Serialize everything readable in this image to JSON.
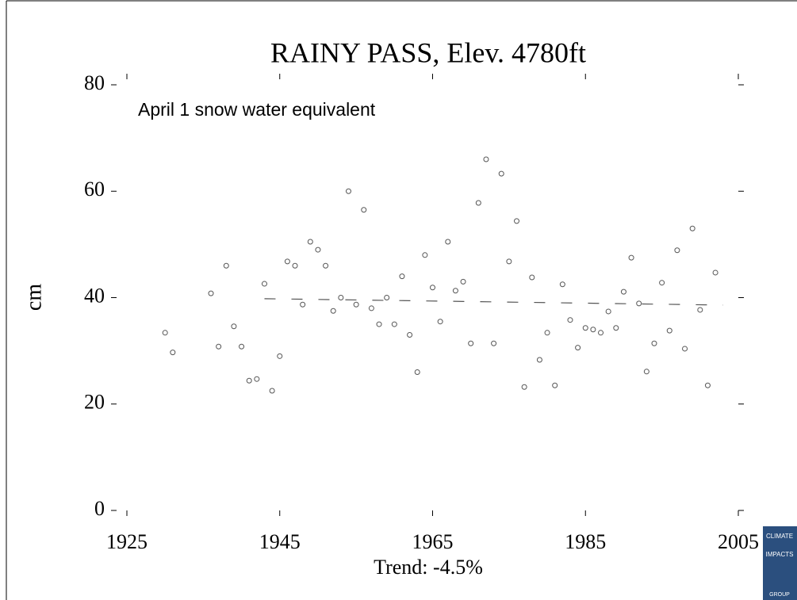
{
  "chart_data": {
    "type": "scatter",
    "title": "RAINY PASS, Elev. 4780ft",
    "annotation": "April 1 snow water equivalent",
    "y_label": "cm",
    "trend_label": "Trend:  -4.5%",
    "color": "#555555",
    "xlim": [
      1925,
      2005
    ],
    "xticks": [
      1925,
      1945,
      1965,
      1985,
      2005
    ],
    "ylim": [
      0,
      80
    ],
    "yticks": [
      0,
      20,
      40,
      60,
      80
    ],
    "x": [
      1930,
      1931,
      1936,
      1937,
      1938,
      1939,
      1940,
      1941,
      1942,
      1943,
      1944,
      1945,
      1946,
      1947,
      1948,
      1949,
      1950,
      1951,
      1952,
      1953,
      1954,
      1955,
      1956,
      1957,
      1958,
      1959,
      1960,
      1961,
      1962,
      1963,
      1964,
      1965,
      1966,
      1967,
      1968,
      1969,
      1970,
      1971,
      1972,
      1973,
      1974,
      1975,
      1976,
      1977,
      1978,
      1979,
      1980,
      1981,
      1982,
      1983,
      1984,
      1985,
      1986,
      1987,
      1988,
      1989,
      1990,
      1991,
      1992,
      1993,
      1994,
      1995,
      1996,
      1997,
      1998,
      1999,
      2000,
      2001,
      2002
    ],
    "values": [
      33.4,
      29.7,
      40.8,
      30.8,
      46,
      34.6,
      30.8,
      24.4,
      24.7,
      42.6,
      22.5,
      29,
      46.8,
      46,
      38.7,
      50.5,
      49,
      46,
      37.5,
      40,
      60,
      38.7,
      56.5,
      38,
      35,
      40,
      35,
      44,
      33,
      26,
      48,
      41.9,
      35.5,
      50.5,
      41.3,
      43,
      31.4,
      57.8,
      66,
      31.4,
      63.3,
      46.8,
      54.4,
      23.2,
      43.8,
      28.3,
      33.4,
      23.5,
      42.5,
      35.8,
      30.6,
      34.3,
      34,
      33.4,
      37.4,
      34.3,
      41.1,
      47.5,
      38.9,
      26.1,
      31.4,
      42.8,
      33.8,
      48.9,
      30.4,
      53,
      37.7,
      23.5,
      44.7
    ],
    "trend": {
      "x": [
        1943,
        2003
      ],
      "values": [
        39.8,
        38.6
      ]
    },
    "logo": [
      "CLIMATE",
      "IMPACTS",
      "GROUP"
    ]
  }
}
